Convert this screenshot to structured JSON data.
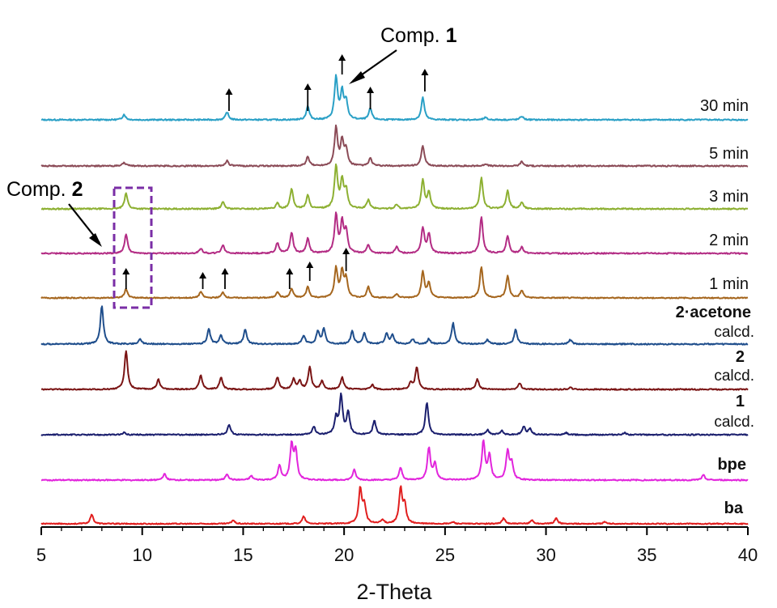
{
  "chart_data": {
    "type": "line",
    "xlabel": "2-Theta",
    "xlim": [
      5,
      40
    ],
    "xticks": [
      5,
      10,
      15,
      20,
      25,
      30,
      35,
      40
    ],
    "grid": false,
    "series": [
      {
        "name": "30 min",
        "color": "#2aa0c6",
        "peaks": [
          [
            9.1,
            0.12
          ],
          [
            14.2,
            0.17
          ],
          [
            18.2,
            0.3
          ],
          [
            19.6,
            0.95
          ],
          [
            19.9,
            0.6
          ],
          [
            20.1,
            0.4
          ],
          [
            21.3,
            0.25
          ],
          [
            23.9,
            0.5
          ],
          [
            27.0,
            0.05
          ],
          [
            28.8,
            0.08
          ]
        ]
      },
      {
        "name": "5 min",
        "color": "#8b4b57",
        "peaks": [
          [
            9.1,
            0.08
          ],
          [
            14.2,
            0.12
          ],
          [
            18.2,
            0.2
          ],
          [
            19.6,
            0.85
          ],
          [
            19.9,
            0.55
          ],
          [
            20.1,
            0.35
          ],
          [
            21.3,
            0.17
          ],
          [
            23.9,
            0.45
          ],
          [
            27.0,
            0.05
          ],
          [
            28.8,
            0.1
          ]
        ]
      },
      {
        "name": "3 min",
        "color": "#8db032",
        "peaks": [
          [
            9.2,
            0.35
          ],
          [
            14.0,
            0.15
          ],
          [
            16.7,
            0.12
          ],
          [
            17.4,
            0.45
          ],
          [
            18.2,
            0.3
          ],
          [
            19.6,
            0.95
          ],
          [
            19.9,
            0.6
          ],
          [
            20.1,
            0.4
          ],
          [
            21.2,
            0.2
          ],
          [
            22.6,
            0.1
          ],
          [
            23.9,
            0.65
          ],
          [
            24.2,
            0.35
          ],
          [
            26.8,
            0.7
          ],
          [
            28.1,
            0.4
          ],
          [
            28.8,
            0.15
          ]
        ]
      },
      {
        "name": "2 min",
        "color": "#b32c84",
        "peaks": [
          [
            9.2,
            0.45
          ],
          [
            12.9,
            0.12
          ],
          [
            14.0,
            0.2
          ],
          [
            16.7,
            0.25
          ],
          [
            17.4,
            0.5
          ],
          [
            18.2,
            0.35
          ],
          [
            19.6,
            0.9
          ],
          [
            19.9,
            0.7
          ],
          [
            20.1,
            0.5
          ],
          [
            21.2,
            0.2
          ],
          [
            22.6,
            0.15
          ],
          [
            23.9,
            0.6
          ],
          [
            24.2,
            0.45
          ],
          [
            26.8,
            0.85
          ],
          [
            28.1,
            0.4
          ],
          [
            28.8,
            0.15
          ]
        ]
      },
      {
        "name": "1 min",
        "color": "#a5661e",
        "peaks": [
          [
            9.2,
            0.25
          ],
          [
            12.9,
            0.17
          ],
          [
            14.0,
            0.15
          ],
          [
            16.7,
            0.17
          ],
          [
            17.4,
            0.25
          ],
          [
            18.2,
            0.3
          ],
          [
            19.6,
            0.8
          ],
          [
            19.9,
            0.7
          ],
          [
            20.1,
            0.5
          ],
          [
            21.2,
            0.3
          ],
          [
            22.6,
            0.1
          ],
          [
            23.9,
            0.7
          ],
          [
            24.2,
            0.4
          ],
          [
            26.8,
            0.85
          ],
          [
            28.1,
            0.6
          ],
          [
            28.8,
            0.2
          ]
        ]
      },
      {
        "name": "2·acetone calcd.",
        "color": "#1f4e8c",
        "peaks": [
          [
            8.0,
            0.9
          ],
          [
            9.9,
            0.12
          ],
          [
            13.3,
            0.35
          ],
          [
            13.9,
            0.2
          ],
          [
            15.1,
            0.35
          ],
          [
            18.0,
            0.2
          ],
          [
            18.7,
            0.3
          ],
          [
            19.0,
            0.35
          ],
          [
            20.4,
            0.3
          ],
          [
            21.0,
            0.25
          ],
          [
            22.1,
            0.25
          ],
          [
            22.4,
            0.2
          ],
          [
            23.4,
            0.12
          ],
          [
            24.2,
            0.12
          ],
          [
            25.4,
            0.5
          ],
          [
            27.1,
            0.1
          ],
          [
            28.5,
            0.35
          ],
          [
            31.2,
            0.1
          ]
        ]
      },
      {
        "name": "2 calcd.",
        "color": "#7a1414",
        "peaks": [
          [
            9.2,
            0.95
          ],
          [
            10.8,
            0.25
          ],
          [
            12.9,
            0.35
          ],
          [
            13.9,
            0.3
          ],
          [
            16.7,
            0.3
          ],
          [
            17.5,
            0.25
          ],
          [
            17.8,
            0.2
          ],
          [
            18.3,
            0.55
          ],
          [
            18.9,
            0.2
          ],
          [
            19.9,
            0.3
          ],
          [
            21.4,
            0.12
          ],
          [
            23.3,
            0.15
          ],
          [
            23.6,
            0.55
          ],
          [
            26.6,
            0.25
          ],
          [
            28.7,
            0.15
          ],
          [
            31.2,
            0.05
          ]
        ]
      },
      {
        "name": "1 calcd.",
        "color": "#1b1f6e",
        "peaks": [
          [
            9.1,
            0.05
          ],
          [
            14.3,
            0.25
          ],
          [
            18.5,
            0.2
          ],
          [
            19.6,
            0.4
          ],
          [
            19.85,
            0.95
          ],
          [
            20.2,
            0.55
          ],
          [
            21.5,
            0.35
          ],
          [
            24.1,
            0.8
          ],
          [
            27.1,
            0.12
          ],
          [
            27.8,
            0.1
          ],
          [
            28.9,
            0.2
          ],
          [
            29.2,
            0.15
          ],
          [
            31.0,
            0.05
          ],
          [
            33.9,
            0.05
          ]
        ]
      },
      {
        "name": "bpe",
        "color": "#e225dc",
        "peaks": [
          [
            11.1,
            0.15
          ],
          [
            14.2,
            0.15
          ],
          [
            15.4,
            0.1
          ],
          [
            16.8,
            0.35
          ],
          [
            17.4,
            0.85
          ],
          [
            17.6,
            0.7
          ],
          [
            20.5,
            0.25
          ],
          [
            22.8,
            0.3
          ],
          [
            24.2,
            0.8
          ],
          [
            24.5,
            0.4
          ],
          [
            26.9,
            0.95
          ],
          [
            27.2,
            0.6
          ],
          [
            28.1,
            0.7
          ],
          [
            28.3,
            0.4
          ],
          [
            37.8,
            0.12
          ]
        ]
      },
      {
        "name": "ba",
        "color": "#e11e1e",
        "peaks": [
          [
            7.5,
            0.25
          ],
          [
            14.5,
            0.1
          ],
          [
            18.0,
            0.2
          ],
          [
            20.8,
            0.95
          ],
          [
            21.0,
            0.5
          ],
          [
            21.9,
            0.1
          ],
          [
            22.8,
            0.95
          ],
          [
            23.0,
            0.5
          ],
          [
            25.4,
            0.05
          ],
          [
            27.9,
            0.15
          ],
          [
            29.3,
            0.1
          ],
          [
            30.5,
            0.15
          ],
          [
            32.9,
            0.05
          ]
        ]
      }
    ],
    "labels": {
      "l30": "30 min",
      "l5": "5 min",
      "l3": "3 min",
      "l2": "2 min",
      "l1": "1 min",
      "acetone_name": "2·acetone",
      "acetone_calcd": "calcd.",
      "two_name": "2",
      "two_calcd": "calcd.",
      "one_name": "1",
      "one_calcd": "calcd.",
      "bpe": "bpe",
      "ba": "ba"
    },
    "annotations": {
      "comp1_prefix": "Comp. ",
      "comp1_bold": "1",
      "comp2_prefix": "Comp. ",
      "comp2_bold": "2"
    }
  }
}
